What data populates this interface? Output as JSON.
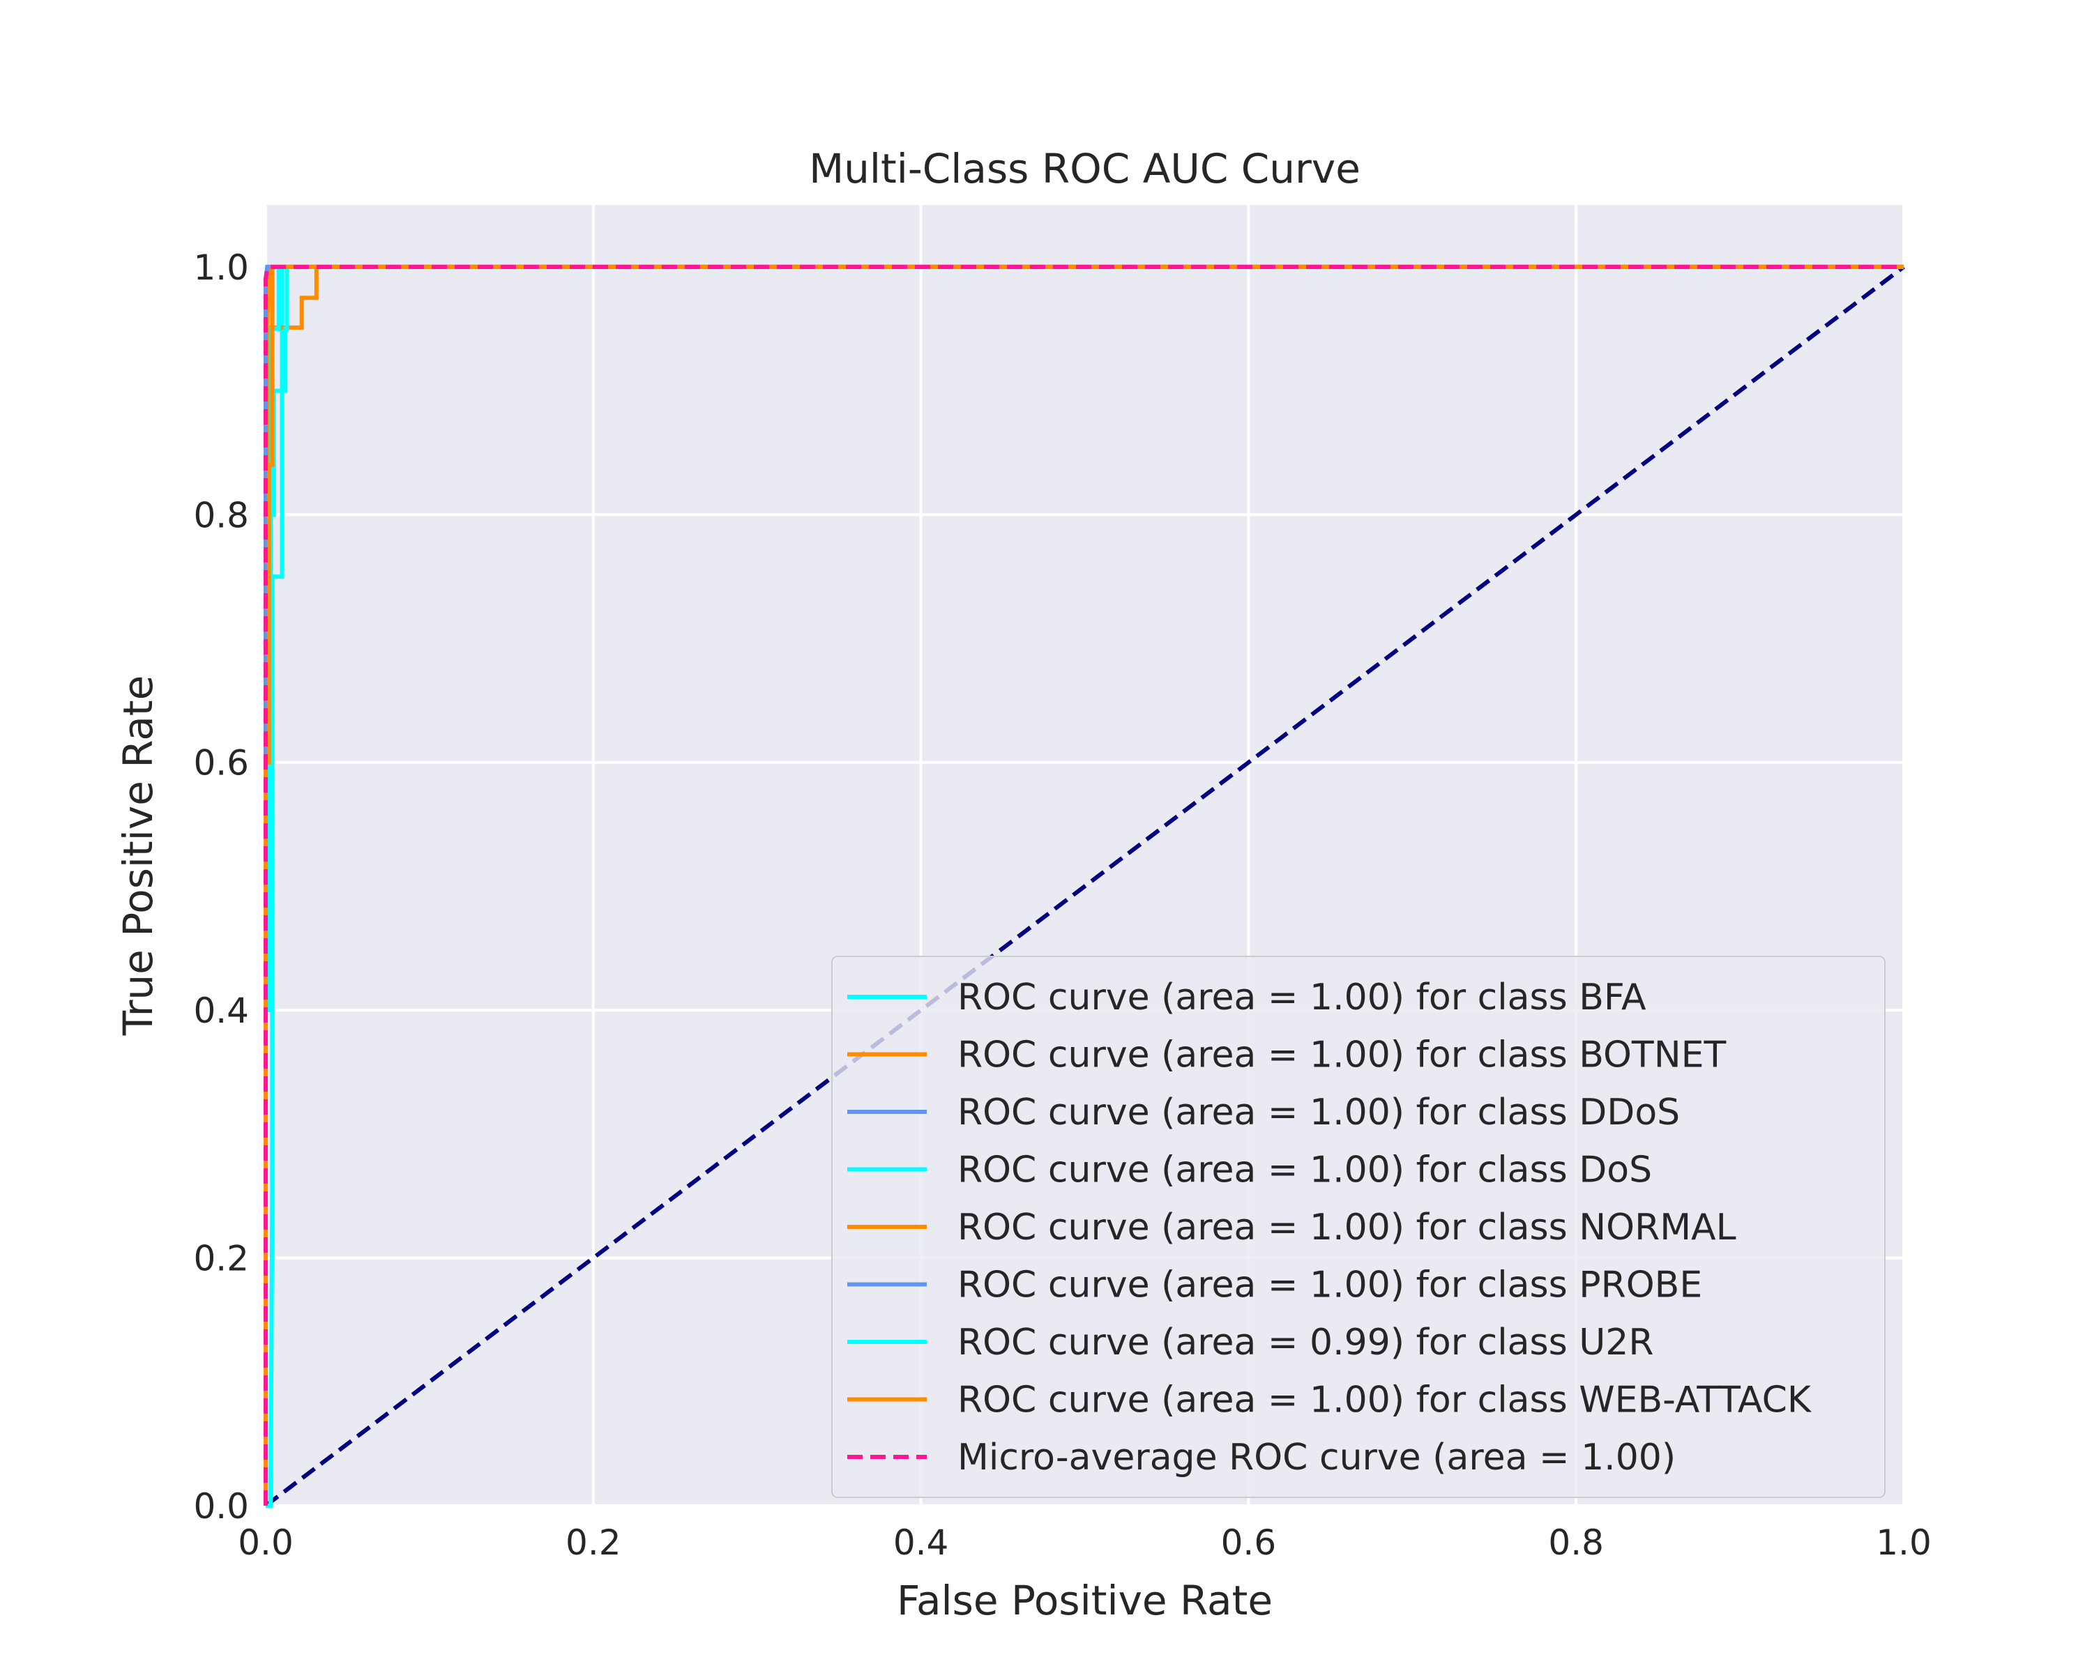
{
  "chart_data": {
    "type": "line",
    "title": "Multi-Class ROC AUC Curve",
    "xlabel": "False Positive Rate",
    "ylabel": "True Positive Rate",
    "xlim": [
      0.0,
      1.0
    ],
    "ylim": [
      0.0,
      1.05
    ],
    "xticks": [
      0.0,
      0.2,
      0.4,
      0.6,
      0.8,
      1.0
    ],
    "yticks": [
      0.0,
      0.2,
      0.4,
      0.6,
      0.8,
      1.0
    ],
    "xtick_labels": [
      "0.0",
      "0.2",
      "0.4",
      "0.6",
      "0.8",
      "1.0"
    ],
    "ytick_labels": [
      "0.0",
      "0.2",
      "0.4",
      "0.6",
      "0.8",
      "1.0"
    ],
    "grid": true,
    "legend_position": "lower-right",
    "background_color": "#eaeaf2",
    "series": [
      {
        "name": "ROC curve (area = 1.00) for class BFA",
        "color": "#00ffff",
        "dash": "solid",
        "x": [
          0.0,
          0.0,
          0.002,
          0.002,
          0.005,
          0.005,
          0.01,
          0.01,
          1.0
        ],
        "y": [
          0.0,
          0.4,
          0.4,
          0.8,
          0.8,
          0.9,
          0.9,
          1.0,
          1.0
        ]
      },
      {
        "name": "ROC curve (area = 1.00) for class BOTNET",
        "color": "#ff8c00",
        "dash": "solid",
        "x": [
          0.0,
          0.0,
          0.002,
          0.002,
          0.003,
          0.003,
          0.022,
          0.022,
          0.031,
          0.031,
          1.0
        ],
        "y": [
          0.0,
          0.83,
          0.83,
          0.926,
          0.926,
          0.951,
          0.951,
          0.975,
          0.975,
          1.0,
          1.0
        ]
      },
      {
        "name": "ROC curve (area = 1.00) for class DDoS",
        "color": "#6495ed",
        "dash": "solid",
        "x": [
          0.0,
          0.0,
          0.001,
          1.0
        ],
        "y": [
          0.0,
          0.98,
          1.0,
          1.0
        ]
      },
      {
        "name": "ROC curve (area = 1.00) for class DoS",
        "color": "#00ffff",
        "dash": "solid",
        "x": [
          0.0,
          0.0,
          0.003,
          0.003,
          0.008,
          0.008,
          1.0
        ],
        "y": [
          0.0,
          0.6,
          0.6,
          0.95,
          0.95,
          1.0,
          1.0
        ]
      },
      {
        "name": "ROC curve (area = 1.00) for class NORMAL",
        "color": "#ff8c00",
        "dash": "solid",
        "x": [
          0.0,
          0.0,
          0.001,
          0.001,
          0.002,
          1.0
        ],
        "y": [
          0.0,
          0.7,
          0.7,
          0.95,
          1.0,
          1.0
        ]
      },
      {
        "name": "ROC curve (area = 1.00) for class PROBE",
        "color": "#6495ed",
        "dash": "solid",
        "x": [
          0.0,
          0.0,
          0.001,
          1.0
        ],
        "y": [
          0.0,
          0.99,
          1.0,
          1.0
        ]
      },
      {
        "name": "ROC curve (area = 0.99) for class U2R",
        "color": "#00ffff",
        "dash": "solid",
        "x": [
          0.0,
          0.003,
          0.004,
          0.004,
          0.01,
          0.01,
          0.012,
          0.012,
          0.013,
          0.013,
          1.0
        ],
        "y": [
          0.0,
          0.0,
          0.25,
          0.75,
          0.75,
          0.9,
          0.9,
          0.95,
          0.95,
          1.0,
          1.0
        ]
      },
      {
        "name": "ROC curve (area = 1.00) for class WEB-ATTACK",
        "color": "#ff8c00",
        "dash": "solid",
        "x": [
          0.0,
          0.0,
          0.002,
          0.002,
          0.004,
          0.004,
          1.0
        ],
        "y": [
          0.0,
          0.6,
          0.6,
          0.84,
          0.84,
          1.0,
          1.0
        ]
      },
      {
        "name": "Micro-average ROC curve (area = 1.00)",
        "color": "#ff1493",
        "dash": "dashed",
        "x": [
          0.0,
          0.0,
          0.001,
          1.0
        ],
        "y": [
          0.0,
          0.99,
          1.0,
          1.0
        ]
      }
    ],
    "reference_line": {
      "x": [
        0.0,
        1.0
      ],
      "y": [
        0.0,
        1.0
      ],
      "color": "#000080",
      "dash": "dashed"
    }
  }
}
